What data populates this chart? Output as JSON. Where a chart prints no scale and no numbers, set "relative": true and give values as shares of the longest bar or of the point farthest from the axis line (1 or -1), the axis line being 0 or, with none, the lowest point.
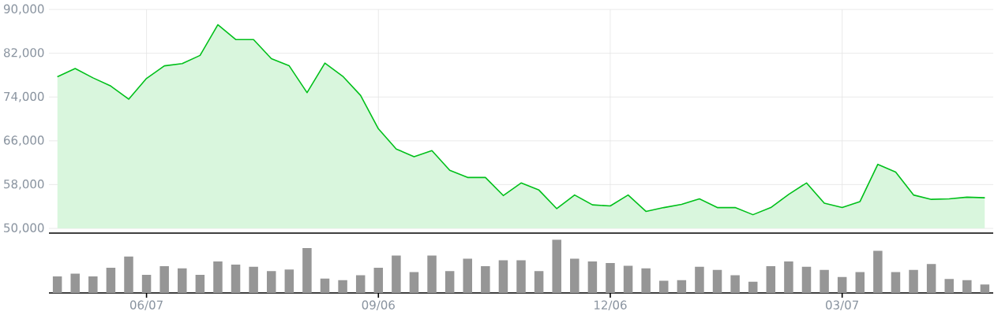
{
  "chart_data": [
    {
      "type": "area",
      "color": "#00c01a",
      "grid": true,
      "tick_labels": "y",
      "categories": [
        null,
        null,
        null,
        null,
        null,
        null,
        null,
        null,
        null,
        null,
        null,
        null,
        null,
        null,
        null,
        null,
        null,
        null,
        null,
        null,
        null,
        null,
        null,
        null,
        null,
        null,
        null,
        null,
        null,
        null,
        null,
        null,
        null,
        null,
        null,
        null,
        null,
        null,
        null,
        null,
        null,
        null,
        null,
        null,
        null,
        null,
        null,
        null,
        null,
        null,
        null,
        null,
        null
      ],
      "values": [
        77700,
        79200,
        77500,
        76000,
        73600,
        77400,
        79700,
        80100,
        81600,
        87200,
        84500,
        84500,
        81000,
        79700,
        74800,
        80200,
        77800,
        74300,
        68200,
        64500,
        63100,
        64200,
        60600,
        59300,
        59300,
        56000,
        58300,
        57000,
        53600,
        56100,
        54300,
        54100,
        56100,
        53100,
        53800,
        54400,
        55400,
        53800,
        53800,
        52500,
        53800,
        56200,
        58300,
        54600,
        53800,
        54900,
        61700,
        60300,
        56100,
        55300,
        55400,
        55700,
        55600
      ],
      "ylim": [
        50000,
        90000
      ],
      "yticks": [
        {
          "value": 50000,
          "label": "50,000"
        },
        {
          "value": 58000,
          "label": "58,000"
        },
        {
          "value": 66000,
          "label": "66,000"
        },
        {
          "value": 74000,
          "label": "74,000"
        },
        {
          "value": 82000,
          "label": "82,000"
        },
        {
          "value": 90000,
          "label": "90,000"
        }
      ]
    },
    {
      "type": "bar",
      "color": "#969696",
      "relative": true,
      "tick_labels": "x",
      "categories": [
        null,
        null,
        null,
        null,
        null,
        "06/07",
        null,
        null,
        null,
        null,
        null,
        null,
        null,
        null,
        null,
        null,
        null,
        null,
        "09/06",
        null,
        null,
        null,
        null,
        null,
        null,
        null,
        null,
        null,
        null,
        null,
        null,
        "12/06",
        null,
        null,
        null,
        null,
        null,
        null,
        null,
        null,
        null,
        null,
        null,
        null,
        "03/07",
        null,
        null,
        null,
        null,
        null,
        null,
        null,
        null
      ],
      "values": [
        0.31,
        0.36,
        0.31,
        0.47,
        0.68,
        0.34,
        0.5,
        0.46,
        0.34,
        0.59,
        0.53,
        0.49,
        0.41,
        0.44,
        0.84,
        0.27,
        0.24,
        0.33,
        0.47,
        0.7,
        0.39,
        0.7,
        0.41,
        0.64,
        0.5,
        0.61,
        0.61,
        0.41,
        1,
        0.64,
        0.59,
        0.56,
        0.51,
        0.46,
        0.23,
        0.24,
        0.49,
        0.43,
        0.33,
        0.21,
        0.5,
        0.59,
        0.49,
        0.43,
        0.3,
        0.39,
        0.79,
        0.39,
        0.43,
        0.54,
        0.26,
        0.24,
        0.16
      ]
    }
  ]
}
